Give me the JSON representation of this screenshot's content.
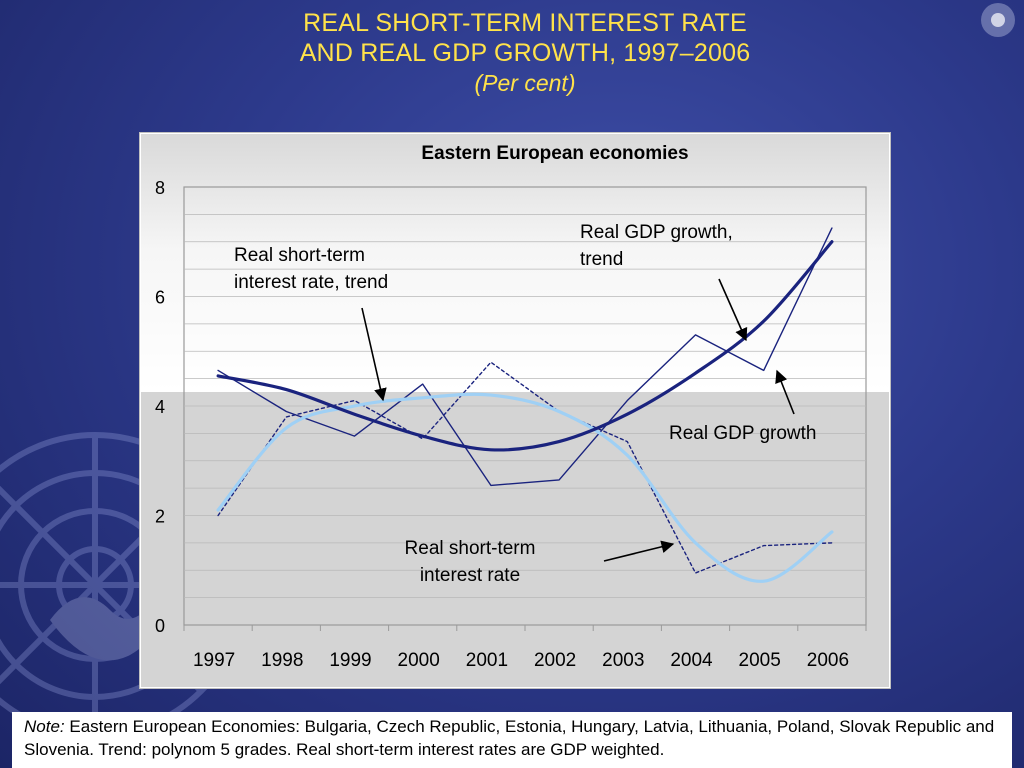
{
  "slide": {
    "title_line1": "REAL SHORT-TERM INTEREST RATE",
    "title_line2": "AND REAL GDP GROWTH, 1997–2006",
    "subtitle": "(Per cent)"
  },
  "colors": {
    "background": "#2d3a8c",
    "title": "#ffe24a",
    "gdp_series": "#1a237e",
    "gdp_trend": "#1a237e",
    "rate_series": "#1a237e",
    "rate_trend": "#9fd0f5"
  },
  "chart_data": {
    "type": "line",
    "title": "Eastern European economies",
    "xlabel": "",
    "ylabel": "",
    "ylim": [
      0,
      8
    ],
    "yticks": [
      0,
      2,
      4,
      6,
      8
    ],
    "grid": true,
    "x": [
      "1997",
      "1998",
      "1999",
      "2000",
      "2001",
      "2002",
      "2003",
      "2004",
      "2005",
      "2006"
    ],
    "series": [
      {
        "name": "Real GDP growth",
        "style": "solid-thin",
        "values": [
          4.65,
          3.9,
          3.45,
          4.4,
          2.55,
          2.65,
          4.1,
          5.3,
          4.65,
          7.25
        ]
      },
      {
        "name": "Real GDP growth, trend",
        "style": "solid-thick",
        "values": [
          4.55,
          4.3,
          3.85,
          3.45,
          3.2,
          3.35,
          3.85,
          4.6,
          5.55,
          7.0
        ]
      },
      {
        "name": "Real short-term interest rate",
        "style": "dotted",
        "values": [
          2.0,
          3.8,
          4.1,
          3.4,
          4.8,
          3.9,
          3.35,
          0.95,
          1.45,
          1.5
        ]
      },
      {
        "name": "Real short-term interest rate, trend",
        "style": "solid-light",
        "values": [
          2.1,
          3.6,
          4.0,
          4.15,
          4.2,
          3.9,
          3.1,
          1.5,
          0.8,
          1.7
        ]
      }
    ],
    "annotations": [
      {
        "text": [
          "Real short-term",
          "interest rate, trend"
        ],
        "target_series": 3
      },
      {
        "text": [
          "Real GDP growth,",
          "trend"
        ],
        "target_series": 1
      },
      {
        "text": [
          "Real GDP growth"
        ],
        "target_series": 0
      },
      {
        "text": [
          "Real short-term",
          "interest rate"
        ],
        "target_series": 2
      }
    ]
  },
  "note": {
    "label": "Note:",
    "text": " Eastern European Economies: Bulgaria, Czech Republic, Estonia, Hungary, Latvia, Lithuania, Poland, Slovak Republic and Slovenia. Trend: polynom 5 grades. Real short-term interest rates are GDP weighted."
  }
}
